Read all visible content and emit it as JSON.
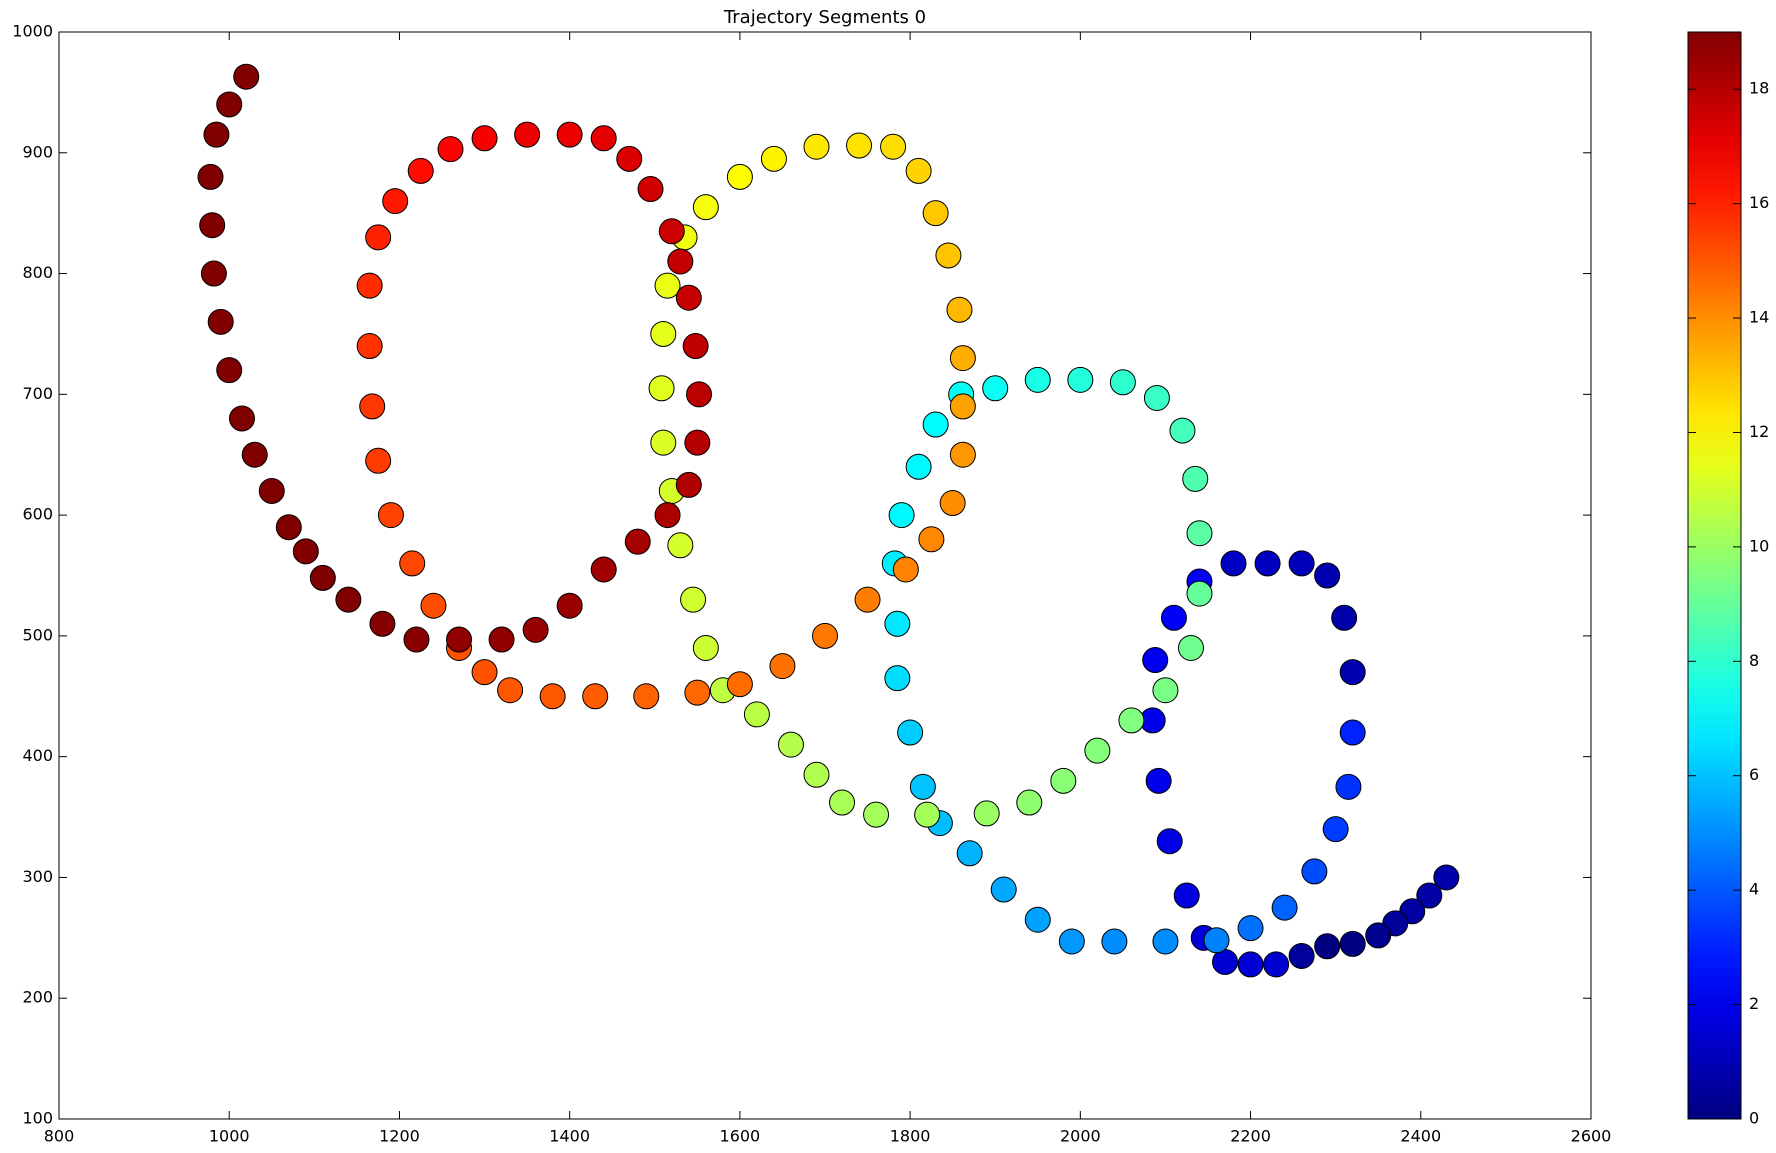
{
  "chart_data": {
    "type": "scatter",
    "title": "Trajectory Segments 0",
    "x": [
      2430,
      2410,
      2390,
      2370,
      2350,
      2320,
      2290,
      2260,
      2230,
      2200,
      2170,
      2145,
      2125,
      2105,
      2092,
      2085,
      2088,
      2110,
      2140,
      2180,
      2220,
      2260,
      2290,
      2310,
      2320,
      2320,
      2315,
      2300,
      2275,
      2240,
      2200,
      2160,
      2100,
      2040,
      1990,
      1950,
      1910,
      1870,
      1835,
      1815,
      1800,
      1785,
      1785,
      1782,
      1790,
      1810,
      1830,
      1860,
      1900,
      1950,
      2000,
      2050,
      2090,
      2120,
      2135,
      2140,
      2140,
      2130,
      2100,
      2060,
      2020,
      1980,
      1940,
      1890,
      1820,
      1760,
      1720,
      1690,
      1660,
      1620,
      1580,
      1560,
      1545,
      1530,
      1520,
      1510,
      1508,
      1510,
      1515,
      1535,
      1560,
      1600,
      1640,
      1690,
      1740,
      1780,
      1810,
      1830,
      1845,
      1858,
      1862,
      1862,
      1862,
      1850,
      1825,
      1795,
      1750,
      1700,
      1650,
      1600,
      1550,
      1490,
      1430,
      1380,
      1330,
      1300,
      1270,
      1240,
      1215,
      1190,
      1175,
      1168,
      1165,
      1165,
      1175,
      1195,
      1225,
      1260,
      1300,
      1350,
      1400,
      1440,
      1470,
      1495,
      1520,
      1530,
      1540,
      1548,
      1552,
      1550,
      1540,
      1515,
      1480,
      1440,
      1400,
      1360,
      1320,
      1270,
      1220,
      1180,
      1140,
      1110,
      1090,
      1070,
      1050,
      1030,
      1015,
      1000,
      990,
      982,
      980,
      978,
      985,
      1000,
      1020
    ],
    "y": [
      300,
      285,
      272,
      262,
      252,
      245,
      243,
      235,
      228,
      228,
      230,
      250,
      285,
      330,
      380,
      430,
      480,
      515,
      545,
      560,
      560,
      560,
      550,
      515,
      470,
      420,
      375,
      340,
      305,
      275,
      258,
      248,
      247,
      247,
      247,
      265,
      290,
      320,
      345,
      375,
      420,
      465,
      510,
      560,
      600,
      640,
      675,
      700,
      705,
      712,
      712,
      710,
      697,
      670,
      630,
      585,
      535,
      490,
      455,
      430,
      405,
      380,
      362,
      353,
      352,
      352,
      362,
      385,
      410,
      435,
      455,
      490,
      530,
      575,
      620,
      660,
      705,
      750,
      790,
      830,
      855,
      880,
      895,
      905,
      906,
      905,
      885,
      850,
      815,
      770,
      730,
      690,
      650,
      610,
      580,
      555,
      530,
      500,
      475,
      460,
      453,
      450,
      450,
      450,
      455,
      470,
      490,
      525,
      560,
      600,
      645,
      690,
      740,
      790,
      830,
      860,
      885,
      903,
      912,
      915,
      915,
      912,
      895,
      870,
      835,
      810,
      780,
      740,
      700,
      660,
      625,
      600,
      578,
      555,
      525,
      505,
      497,
      497,
      497,
      510,
      530,
      548,
      570,
      590,
      620,
      650,
      680,
      720,
      760,
      800,
      840,
      880,
      915,
      940,
      963
    ],
    "c": [
      0.8,
      0.7,
      0.6,
      0.5,
      0.3,
      0.1,
      0,
      0.5,
      1.5,
      1.6,
      1.6,
      1.7,
      1.8,
      1.9,
      2,
      2,
      2.1,
      2.2,
      2.3,
      1.3,
      1.2,
      1.1,
      0.9,
      0.8,
      0.9,
      3,
      3.3,
      3.5,
      3.8,
      4.2,
      4.5,
      4.8,
      5,
      5,
      5.2,
      5.4,
      5.5,
      5.7,
      5.9,
      6,
      6.2,
      6.5,
      6.7,
      6.8,
      7,
      7,
      7.1,
      7.2,
      7.3,
      7.6,
      7.8,
      8,
      8.2,
      8.4,
      8.6,
      8.8,
      9,
      9.2,
      9.4,
      9.5,
      9.6,
      9.7,
      9.8,
      10,
      10.2,
      10.2,
      10.3,
      10.4,
      10.5,
      10.6,
      10.7,
      10.9,
      11,
      11.1,
      11.1,
      11.2,
      11.3,
      11.4,
      11.5,
      11.6,
      11.7,
      11.9,
      12.1,
      12.3,
      12.4,
      12.5,
      12.7,
      12.9,
      13,
      13.2,
      13.4,
      13.6,
      13.8,
      14,
      14.1,
      14.2,
      14.3,
      14.4,
      14.5,
      14.6,
      14.7,
      14.8,
      14.9,
      15,
      15,
      15.1,
      15.1,
      15.2,
      15.3,
      15.4,
      15.5,
      15.6,
      15.7,
      15.8,
      16,
      16.2,
      16.4,
      16.6,
      16.8,
      16.9,
      17,
      17.1,
      17.3,
      17.5,
      17.6,
      17.7,
      17.7,
      17.8,
      17.9,
      18,
      18.1,
      18.2,
      18.3,
      18.4,
      18.5,
      18.6,
      18.7,
      18.7,
      18.8,
      18.9,
      19,
      19,
      19,
      19,
      19,
      19,
      19,
      19,
      19,
      19,
      19,
      19,
      19,
      19,
      19
    ],
    "colormap": "jet",
    "clim": [
      0,
      19
    ],
    "cticks": [
      0,
      2,
      4,
      6,
      8,
      10,
      12,
      14,
      16,
      18
    ],
    "xlim": [
      800,
      2600
    ],
    "xticks": [
      800,
      1000,
      1200,
      1400,
      1600,
      1800,
      2000,
      2200,
      2400,
      2600
    ],
    "ylim": [
      100,
      1000
    ],
    "yticks": [
      100,
      200,
      300,
      400,
      500,
      600,
      700,
      800,
      900,
      1000
    ]
  }
}
